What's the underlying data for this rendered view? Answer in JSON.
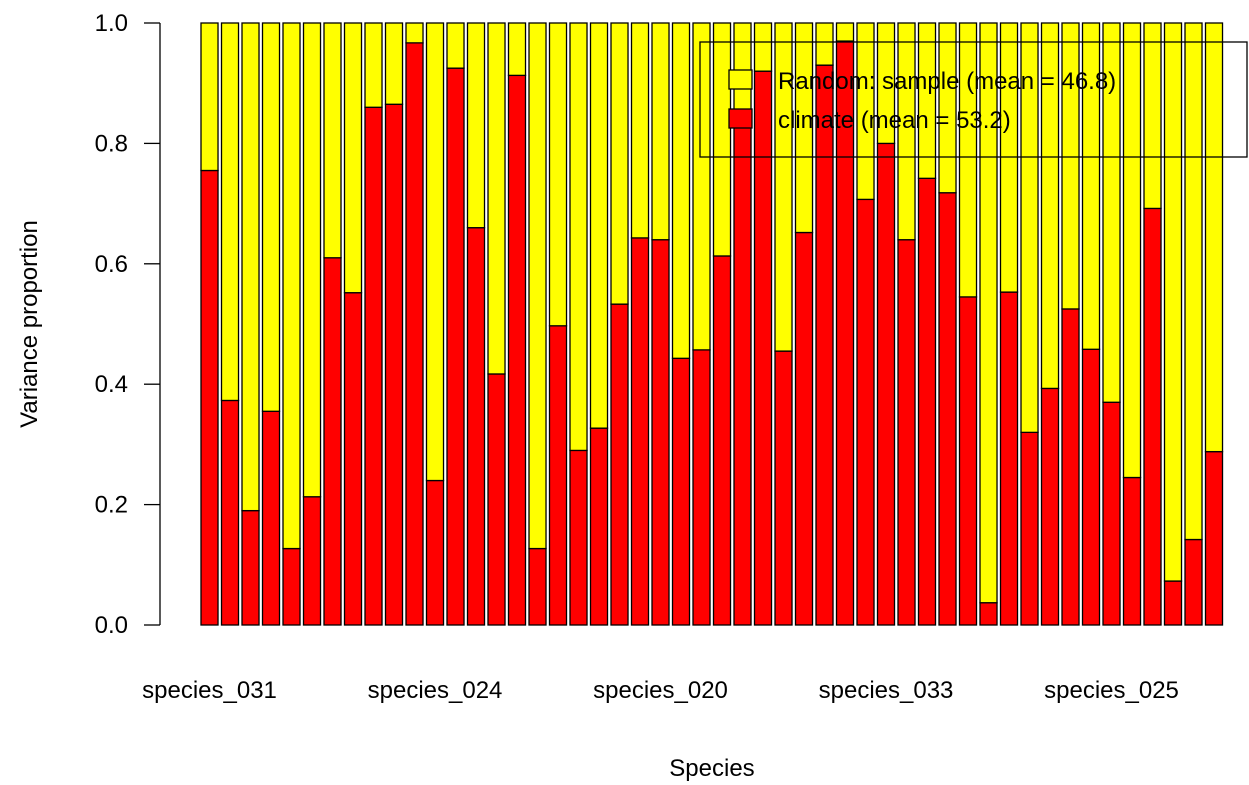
{
  "chart_data": {
    "type": "bar",
    "stacked": true,
    "xlabel": "Species",
    "ylabel": "Variance proportion",
    "ylim": [
      0,
      1
    ],
    "y_ticks": [
      "0.0",
      "0.2",
      "0.4",
      "0.6",
      "0.8",
      "1.0"
    ],
    "x_tick_labels": [
      {
        "index": 0,
        "label": "species_031"
      },
      {
        "index": 11,
        "label": "species_024"
      },
      {
        "index": 22,
        "label": "species_020"
      },
      {
        "index": 33,
        "label": "species_033"
      },
      {
        "index": 44,
        "label": "species_025"
      }
    ],
    "bar_count": 50,
    "series": [
      {
        "name": "climate (mean = 53.2)",
        "color": "#ff0000",
        "values": [
          0.755,
          0.373,
          0.19,
          0.355,
          0.127,
          0.213,
          0.61,
          0.552,
          0.86,
          0.865,
          0.967,
          0.24,
          0.925,
          0.66,
          0.417,
          0.913,
          0.127,
          0.497,
          0.29,
          0.327,
          0.533,
          0.643,
          0.64,
          0.443,
          0.457,
          0.613,
          0.85,
          0.92,
          0.455,
          0.652,
          0.93,
          0.97,
          0.707,
          0.8,
          0.64,
          0.742,
          0.718,
          0.545,
          0.037,
          0.553,
          0.32,
          0.393,
          0.525,
          0.458,
          0.37,
          0.245,
          0.692,
          0.073,
          0.142,
          0.288
        ]
      },
      {
        "name": "Random: sample (mean = 46.8)",
        "color": "#ffff00",
        "values": [
          0.245,
          0.627,
          0.81,
          0.645,
          0.873,
          0.787,
          0.39,
          0.448,
          0.14,
          0.135,
          0.033,
          0.76,
          0.075,
          0.34,
          0.583,
          0.087,
          0.873,
          0.503,
          0.71,
          0.673,
          0.467,
          0.357,
          0.36,
          0.557,
          0.543,
          0.387,
          0.15,
          0.08,
          0.545,
          0.348,
          0.07,
          0.03,
          0.293,
          0.2,
          0.36,
          0.258,
          0.282,
          0.455,
          0.963,
          0.447,
          0.68,
          0.607,
          0.475,
          0.542,
          0.63,
          0.755,
          0.308,
          0.927,
          0.858,
          0.712
        ]
      }
    ],
    "legend": {
      "placement": "top-right",
      "entries": [
        {
          "label": "Random: sample (mean = 46.8)",
          "color": "#ffff00"
        },
        {
          "label": "climate (mean = 53.2)",
          "color": "#ff0000"
        }
      ]
    }
  }
}
